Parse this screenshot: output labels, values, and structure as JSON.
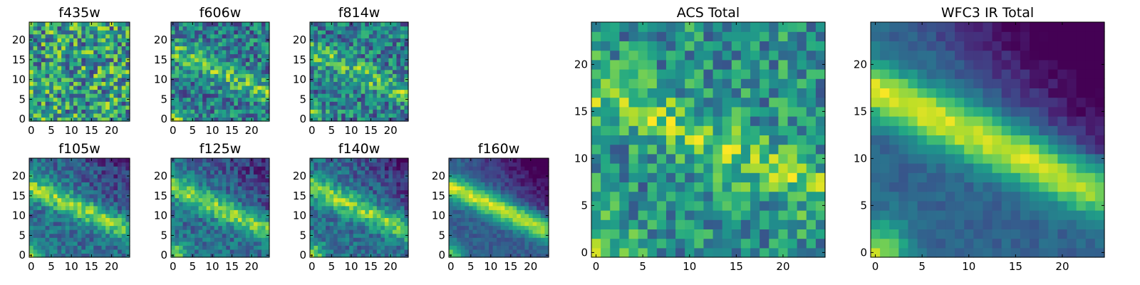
{
  "figure": {
    "colormap": "viridis",
    "background": "#ffffff",
    "axis_color": "#000000"
  },
  "chart_data": [
    {
      "type": "heatmap",
      "title": "f435w",
      "grid": false,
      "xlim": [
        0,
        24
      ],
      "ylim": [
        0,
        24
      ],
      "xticks": [
        0,
        5,
        10,
        15,
        20
      ],
      "yticks": [
        0,
        5,
        10,
        15,
        20
      ],
      "pattern": "noise",
      "z_description": "pixel flux, normalized 0-1 (noise-dominated)"
    },
    {
      "type": "heatmap",
      "title": "f606w",
      "grid": false,
      "xlim": [
        0,
        24
      ],
      "ylim": [
        0,
        24
      ],
      "xticks": [
        0,
        5,
        10,
        15,
        20
      ],
      "yticks": [
        0,
        5,
        10,
        15,
        20
      ],
      "pattern": "faint-band",
      "z_description": "pixel flux, normalized 0-1"
    },
    {
      "type": "heatmap",
      "title": "f814w",
      "grid": false,
      "xlim": [
        0,
        24
      ],
      "ylim": [
        0,
        24
      ],
      "xticks": [
        0,
        5,
        10,
        15,
        20
      ],
      "yticks": [
        0,
        5,
        10,
        15,
        20
      ],
      "pattern": "faint-band",
      "z_description": "pixel flux, normalized 0-1"
    },
    {
      "type": "heatmap",
      "title": "f105w",
      "grid": false,
      "xlim": [
        0,
        24
      ],
      "ylim": [
        0,
        24
      ],
      "xticks": [
        0,
        5,
        10,
        15,
        20
      ],
      "yticks": [
        0,
        5,
        10,
        15,
        20
      ],
      "pattern": "band",
      "z_description": "pixel flux, normalized 0-1"
    },
    {
      "type": "heatmap",
      "title": "f125w",
      "grid": false,
      "xlim": [
        0,
        24
      ],
      "ylim": [
        0,
        24
      ],
      "xticks": [
        0,
        5,
        10,
        15,
        20
      ],
      "yticks": [
        0,
        5,
        10,
        15,
        20
      ],
      "pattern": "band",
      "z_description": "pixel flux, normalized 0-1"
    },
    {
      "type": "heatmap",
      "title": "f140w",
      "grid": false,
      "xlim": [
        0,
        24
      ],
      "ylim": [
        0,
        24
      ],
      "xticks": [
        0,
        5,
        10,
        15,
        20
      ],
      "yticks": [
        0,
        5,
        10,
        15,
        20
      ],
      "pattern": "band",
      "z_description": "pixel flux, normalized 0-1"
    },
    {
      "type": "heatmap",
      "title": "f160w",
      "grid": false,
      "xlim": [
        0,
        24
      ],
      "ylim": [
        0,
        24
      ],
      "xticks": [
        0,
        5,
        10,
        15,
        20
      ],
      "yticks": [
        0,
        5,
        10,
        15,
        20
      ],
      "pattern": "strong-band",
      "z_description": "pixel flux, normalized 0-1"
    },
    {
      "type": "heatmap",
      "title": "ACS Total",
      "grid": false,
      "xlim": [
        0,
        24
      ],
      "ylim": [
        0,
        24
      ],
      "xticks": [
        0,
        5,
        10,
        15,
        20
      ],
      "yticks": [
        0,
        5,
        10,
        15,
        20
      ],
      "pattern": "acs-total",
      "z_description": "summed ACS flux, normalized 0-1"
    },
    {
      "type": "heatmap",
      "title": "WFC3 IR Total",
      "grid": false,
      "xlim": [
        0,
        24
      ],
      "ylim": [
        0,
        24
      ],
      "xticks": [
        0,
        5,
        10,
        15,
        20
      ],
      "yticks": [
        0,
        5,
        10,
        15,
        20
      ],
      "pattern": "ir-total",
      "z_description": "summed WFC3 IR flux, normalized 0-1"
    }
  ]
}
